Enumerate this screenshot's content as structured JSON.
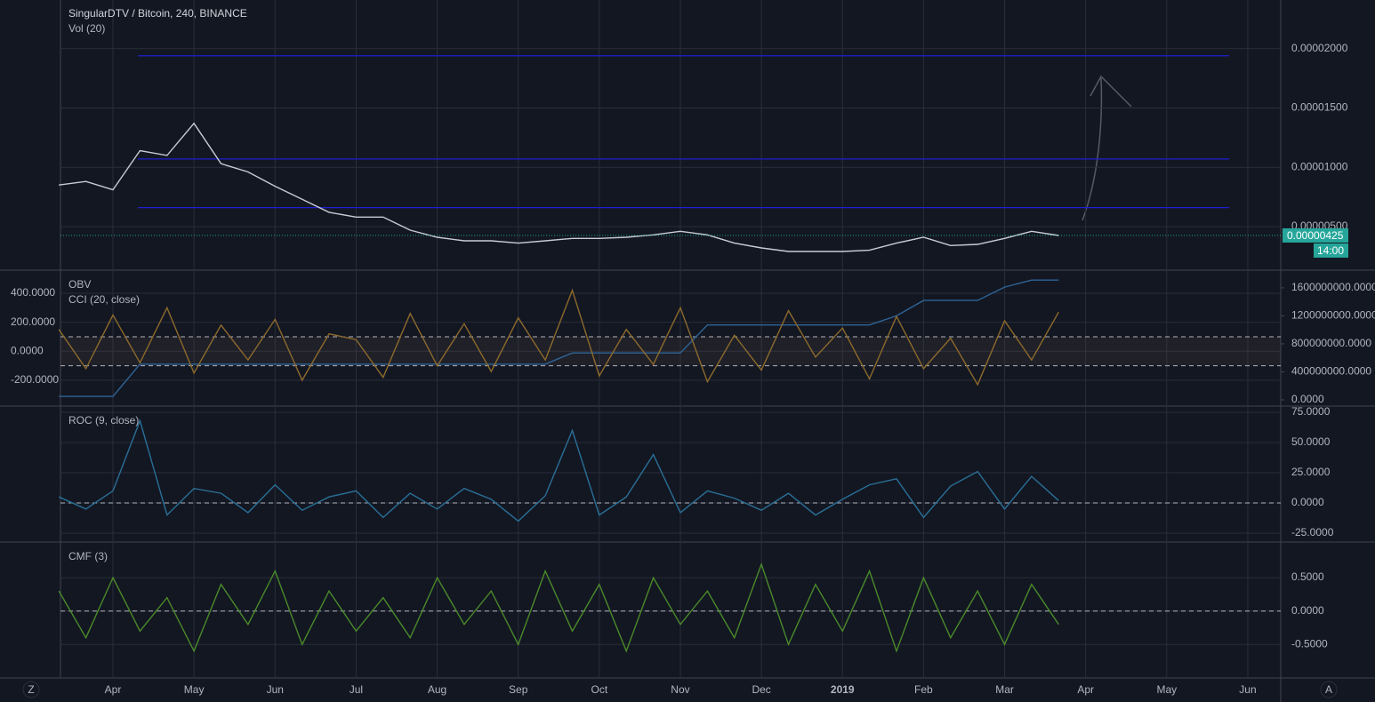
{
  "chart_data": [
    {
      "type": "line",
      "title": "SingularDTV / Bitcoin, 240, BINANCE",
      "subtitle": "Vol (20)",
      "categories": [
        null,
        null,
        "Apr",
        null,
        null,
        "May",
        null,
        null,
        "Jun",
        null,
        null,
        "Jul",
        null,
        null,
        "Aug",
        null,
        null,
        "Sep",
        null,
        null,
        "Oct",
        null,
        null,
        "Nov",
        null,
        null,
        "Dec",
        null,
        null,
        "2019",
        null,
        null,
        "Feb",
        null,
        null,
        "Mar",
        null,
        null,
        "Apr",
        null,
        null,
        "May",
        null,
        null,
        "Jun",
        null
      ],
      "series": [
        {
          "color": "#c8ccd4",
          "values": [
            8.5e-06,
            8.8e-06,
            8.1e-06,
            1.14e-05,
            1.1e-05,
            1.37e-05,
            1.03e-05,
            9.6e-06,
            8.4e-06,
            7.3e-06,
            6.2e-06,
            5.8e-06,
            5.8e-06,
            4.7e-06,
            4.1e-06,
            3.8e-06,
            3.8e-06,
            3.6e-06,
            3.8e-06,
            4e-06,
            4e-06,
            4.1e-06,
            4.3e-06,
            4.6e-06,
            4.3e-06,
            3.6e-06,
            3.2e-06,
            2.9e-06,
            2.9e-06,
            2.9e-06,
            3e-06,
            3.6e-06,
            4.1e-06,
            3.4e-06,
            3.5e-06,
            4e-06,
            4.6e-06,
            4.25e-06,
            null,
            null,
            null,
            null,
            null,
            null,
            null,
            null
          ]
        }
      ],
      "ylim": [
        1.4e-06,
        2.41e-05
      ],
      "yticks": [
        {
          "value": 5e-06,
          "label": "0.00000500"
        },
        {
          "value": 1e-05,
          "label": "0.00001000"
        },
        {
          "value": 1.5e-05,
          "label": "0.00001500"
        },
        {
          "value": 2e-05,
          "label": "0.00002000"
        }
      ],
      "levels": [
        {
          "value": 1.94e-05,
          "color": "#1f1fd0"
        },
        {
          "value": 1.07e-05,
          "color": "#1f1fd0"
        },
        {
          "value": 6.6e-06,
          "color": "#1f1fd0"
        }
      ],
      "last_price": {
        "value": 4.25e-06,
        "label": "0.00000425",
        "color": "#26a69a"
      },
      "countdown": "14:00",
      "grid": true
    },
    {
      "type": "line",
      "series": [
        {
          "name": "OBV",
          "color": "#2e6496",
          "axis": "y2",
          "values": [
            50000000,
            50000000,
            50000000,
            510000000,
            510000000,
            510000000,
            510000000,
            510000000,
            510000000,
            510000000,
            510000000,
            510000000,
            510000000,
            510000000,
            510000000,
            510000000,
            510000000,
            510000000,
            510000000,
            670000000,
            670000000,
            670000000,
            670000000,
            670000000,
            1070000000,
            1070000000,
            1070000000,
            1070000000,
            1070000000,
            1070000000,
            1070000000,
            1200000000,
            1420000000,
            1420000000,
            1420000000,
            1610000000,
            1710000000,
            1710000000,
            null,
            null,
            null,
            null,
            null,
            null,
            null,
            null
          ]
        },
        {
          "name": "CCI (20, close)",
          "color": "#8d6a2c",
          "values": [
            150,
            -120,
            250,
            -80,
            300,
            -150,
            180,
            -60,
            220,
            -200,
            120,
            80,
            -180,
            260,
            -100,
            190,
            -140,
            230,
            -60,
            420,
            -170,
            150,
            -90,
            300,
            -210,
            110,
            -130,
            280,
            -40,
            160,
            -190,
            240,
            -120,
            90,
            -230,
            210,
            -60,
            270,
            null,
            null,
            null,
            null,
            null,
            null,
            null,
            null
          ]
        }
      ],
      "ylim": [
        -372,
        553
      ],
      "yticks": [
        {
          "value": -200,
          "label": "-200.0000"
        },
        {
          "value": 0,
          "label": "0.0000"
        },
        {
          "value": 200,
          "label": "200.0000"
        },
        {
          "value": 400,
          "label": "400.0000"
        }
      ],
      "y2lim": [
        -76000000,
        1840000000
      ],
      "y2ticks": [
        {
          "value": 0,
          "label": "0.0000"
        },
        {
          "value": 400000000,
          "label": "400000000.0000"
        },
        {
          "value": 800000000,
          "label": "800000000.0000"
        },
        {
          "value": 1200000000,
          "label": "1200000000.0000"
        },
        {
          "value": 1600000000,
          "label": "1600000000.0000"
        }
      ],
      "bands": [
        100,
        -100
      ],
      "grid": true
    },
    {
      "type": "line",
      "series": [
        {
          "name": "ROC (9, close)",
          "color": "#2a6f97",
          "values": [
            5,
            -5,
            10,
            68,
            -10,
            12,
            8,
            -8,
            15,
            -6,
            5,
            10,
            -12,
            8,
            -5,
            12,
            3,
            -15,
            6,
            60,
            -10,
            5,
            40,
            -8,
            10,
            4,
            -6,
            8,
            -10,
            3,
            15,
            20,
            -12,
            14,
            26,
            -5,
            22,
            2,
            null,
            null,
            null,
            null,
            null,
            null,
            null,
            null
          ]
        }
      ],
      "ylim": [
        -31.6,
        79.4
      ],
      "yticks": [
        {
          "value": -25,
          "label": "-25.0000"
        },
        {
          "value": 0,
          "label": "0.0000"
        },
        {
          "value": 25,
          "label": "25.0000"
        },
        {
          "value": 50,
          "label": "50.0000"
        },
        {
          "value": 75,
          "label": "75.0000"
        }
      ],
      "zero_line": 0,
      "grid": true
    },
    {
      "type": "line",
      "series": [
        {
          "name": "CMF (3)",
          "color": "#4a8a2a",
          "values": [
            0.3,
            -0.4,
            0.5,
            -0.3,
            0.2,
            -0.6,
            0.4,
            -0.2,
            0.6,
            -0.5,
            0.3,
            -0.3,
            0.2,
            -0.4,
            0.5,
            -0.2,
            0.3,
            -0.5,
            0.6,
            -0.3,
            0.4,
            -0.6,
            0.5,
            -0.2,
            0.3,
            -0.4,
            0.7,
            -0.5,
            0.4,
            -0.3,
            0.6,
            -0.6,
            0.5,
            -0.4,
            0.3,
            -0.5,
            0.4,
            -0.2,
            null,
            null,
            null,
            null,
            null,
            null,
            null,
            null
          ]
        }
      ],
      "ylim": [
        -0.99,
        1.02
      ],
      "yticks": [
        {
          "value": -0.5,
          "label": "-0.5000"
        },
        {
          "value": 0,
          "label": "0.0000"
        },
        {
          "value": 0.5,
          "label": "0.5000"
        }
      ],
      "zero_line": 0,
      "grid": true
    }
  ],
  "buttons": [
    "Z",
    "A"
  ]
}
